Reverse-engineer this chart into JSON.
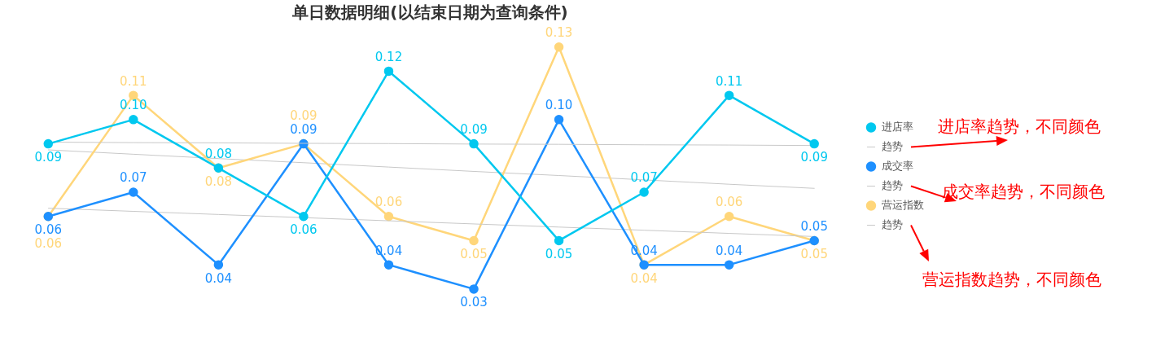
{
  "chart_data": {
    "type": "line",
    "title": "单日数据明细(以结束日期为查询条件)",
    "categories": [
      null,
      null,
      null,
      null,
      null,
      null,
      null,
      null,
      null,
      null
    ],
    "legend": "right",
    "marker": "circle",
    "series": [
      {
        "name": "进店率",
        "color": "#00c8ef",
        "values": [
          0.09,
          0.1,
          0.08,
          0.06,
          0.12,
          0.09,
          0.05,
          0.07,
          0.11,
          0.09
        ],
        "value_labels": [
          "0.09",
          "0.10",
          "0.08",
          "0.06",
          "0.12",
          "0.09",
          "0.05",
          "0.07",
          "0.11",
          "0.09"
        ]
      },
      {
        "name": "趋势",
        "marker": "none",
        "color": "#c8c8c8",
        "values": [
          0.0907,
          0.0905,
          0.0904,
          0.0902,
          0.0901,
          0.0899,
          0.0898,
          0.0896,
          0.0895,
          0.0893
        ]
      },
      {
        "name": "成交率",
        "color": "#1e90ff",
        "values": [
          0.06,
          0.07,
          0.04,
          0.09,
          0.04,
          0.03,
          0.1,
          0.04,
          0.04,
          0.05
        ],
        "value_labels": [
          "0.06",
          "0.07",
          "0.04",
          "0.09",
          "0.04",
          "0.03",
          "0.10",
          "0.04",
          "0.04",
          "0.05"
        ]
      },
      {
        "name": "趋势",
        "marker": "none",
        "color": "#c8c8c8",
        "values": [
          0.0634,
          0.0621,
          0.0608,
          0.0595,
          0.0582,
          0.0569,
          0.0556,
          0.0543,
          0.053,
          0.0517
        ]
      },
      {
        "name": "营运指数",
        "color": "#ffd67a",
        "values": [
          0.06,
          0.11,
          0.08,
          0.09,
          0.06,
          0.05,
          0.13,
          0.04,
          0.06,
          0.05
        ],
        "value_labels": [
          "0.06",
          "0.11",
          "0.08",
          "0.09",
          "0.06",
          "0.05",
          "0.13",
          "0.04",
          "0.06",
          "0.05"
        ]
      },
      {
        "name": "趋势",
        "marker": "none",
        "color": "#c8c8c8",
        "values": [
          0.0875,
          0.0857,
          0.0839,
          0.0822,
          0.0804,
          0.0786,
          0.0769,
          0.0751,
          0.0733,
          0.0716
        ]
      }
    ],
    "annotations": [
      "进店率趋势，不同颜色",
      "成交率趋势，不同颜色",
      "营运指数趋势，不同颜色"
    ]
  }
}
